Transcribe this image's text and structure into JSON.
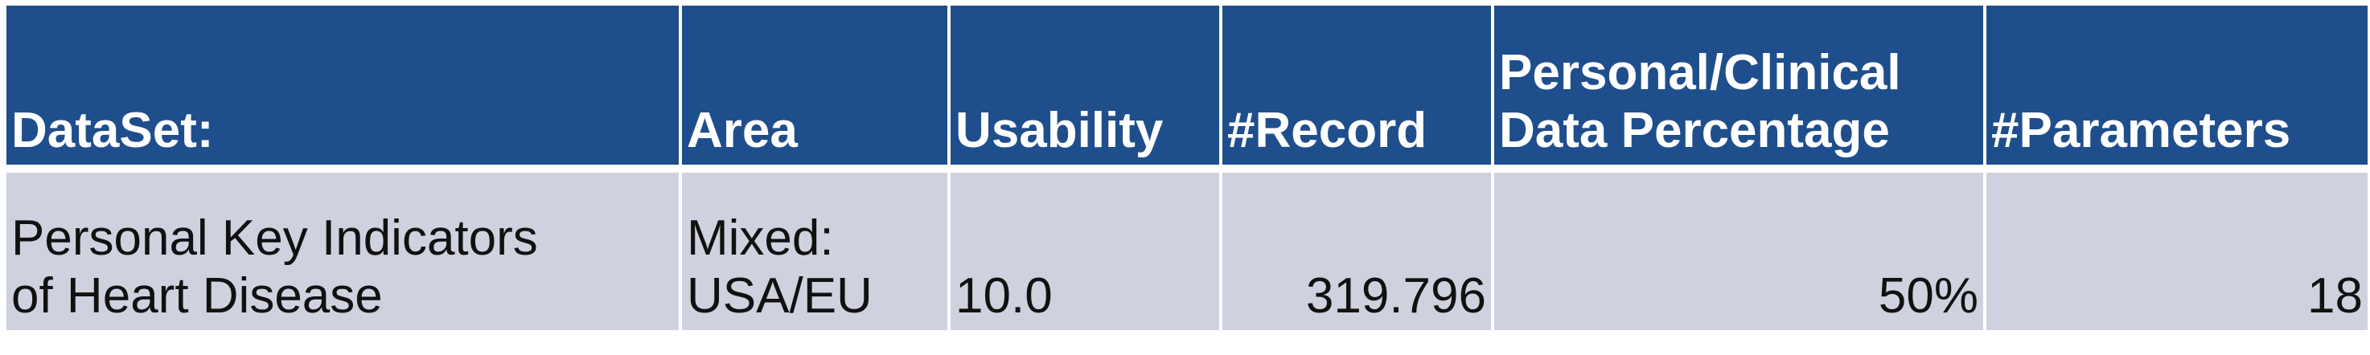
{
  "table": {
    "headers": [
      "DataSet:",
      "Area",
      "Usability",
      "#Record",
      "Personal/Clinical\nData Percentage",
      "#Parameters"
    ],
    "rows": [
      [
        "Personal Key Indicators\nof Heart Disease",
        "Mixed:\nUSA/EU",
        "10.0",
        "319.796",
        "50%",
        "18"
      ]
    ]
  },
  "colors": {
    "header_background": "#1f4e8c",
    "header_text": "#ffffff",
    "body_background": "#cfd2de",
    "body_text": "#111111"
  }
}
